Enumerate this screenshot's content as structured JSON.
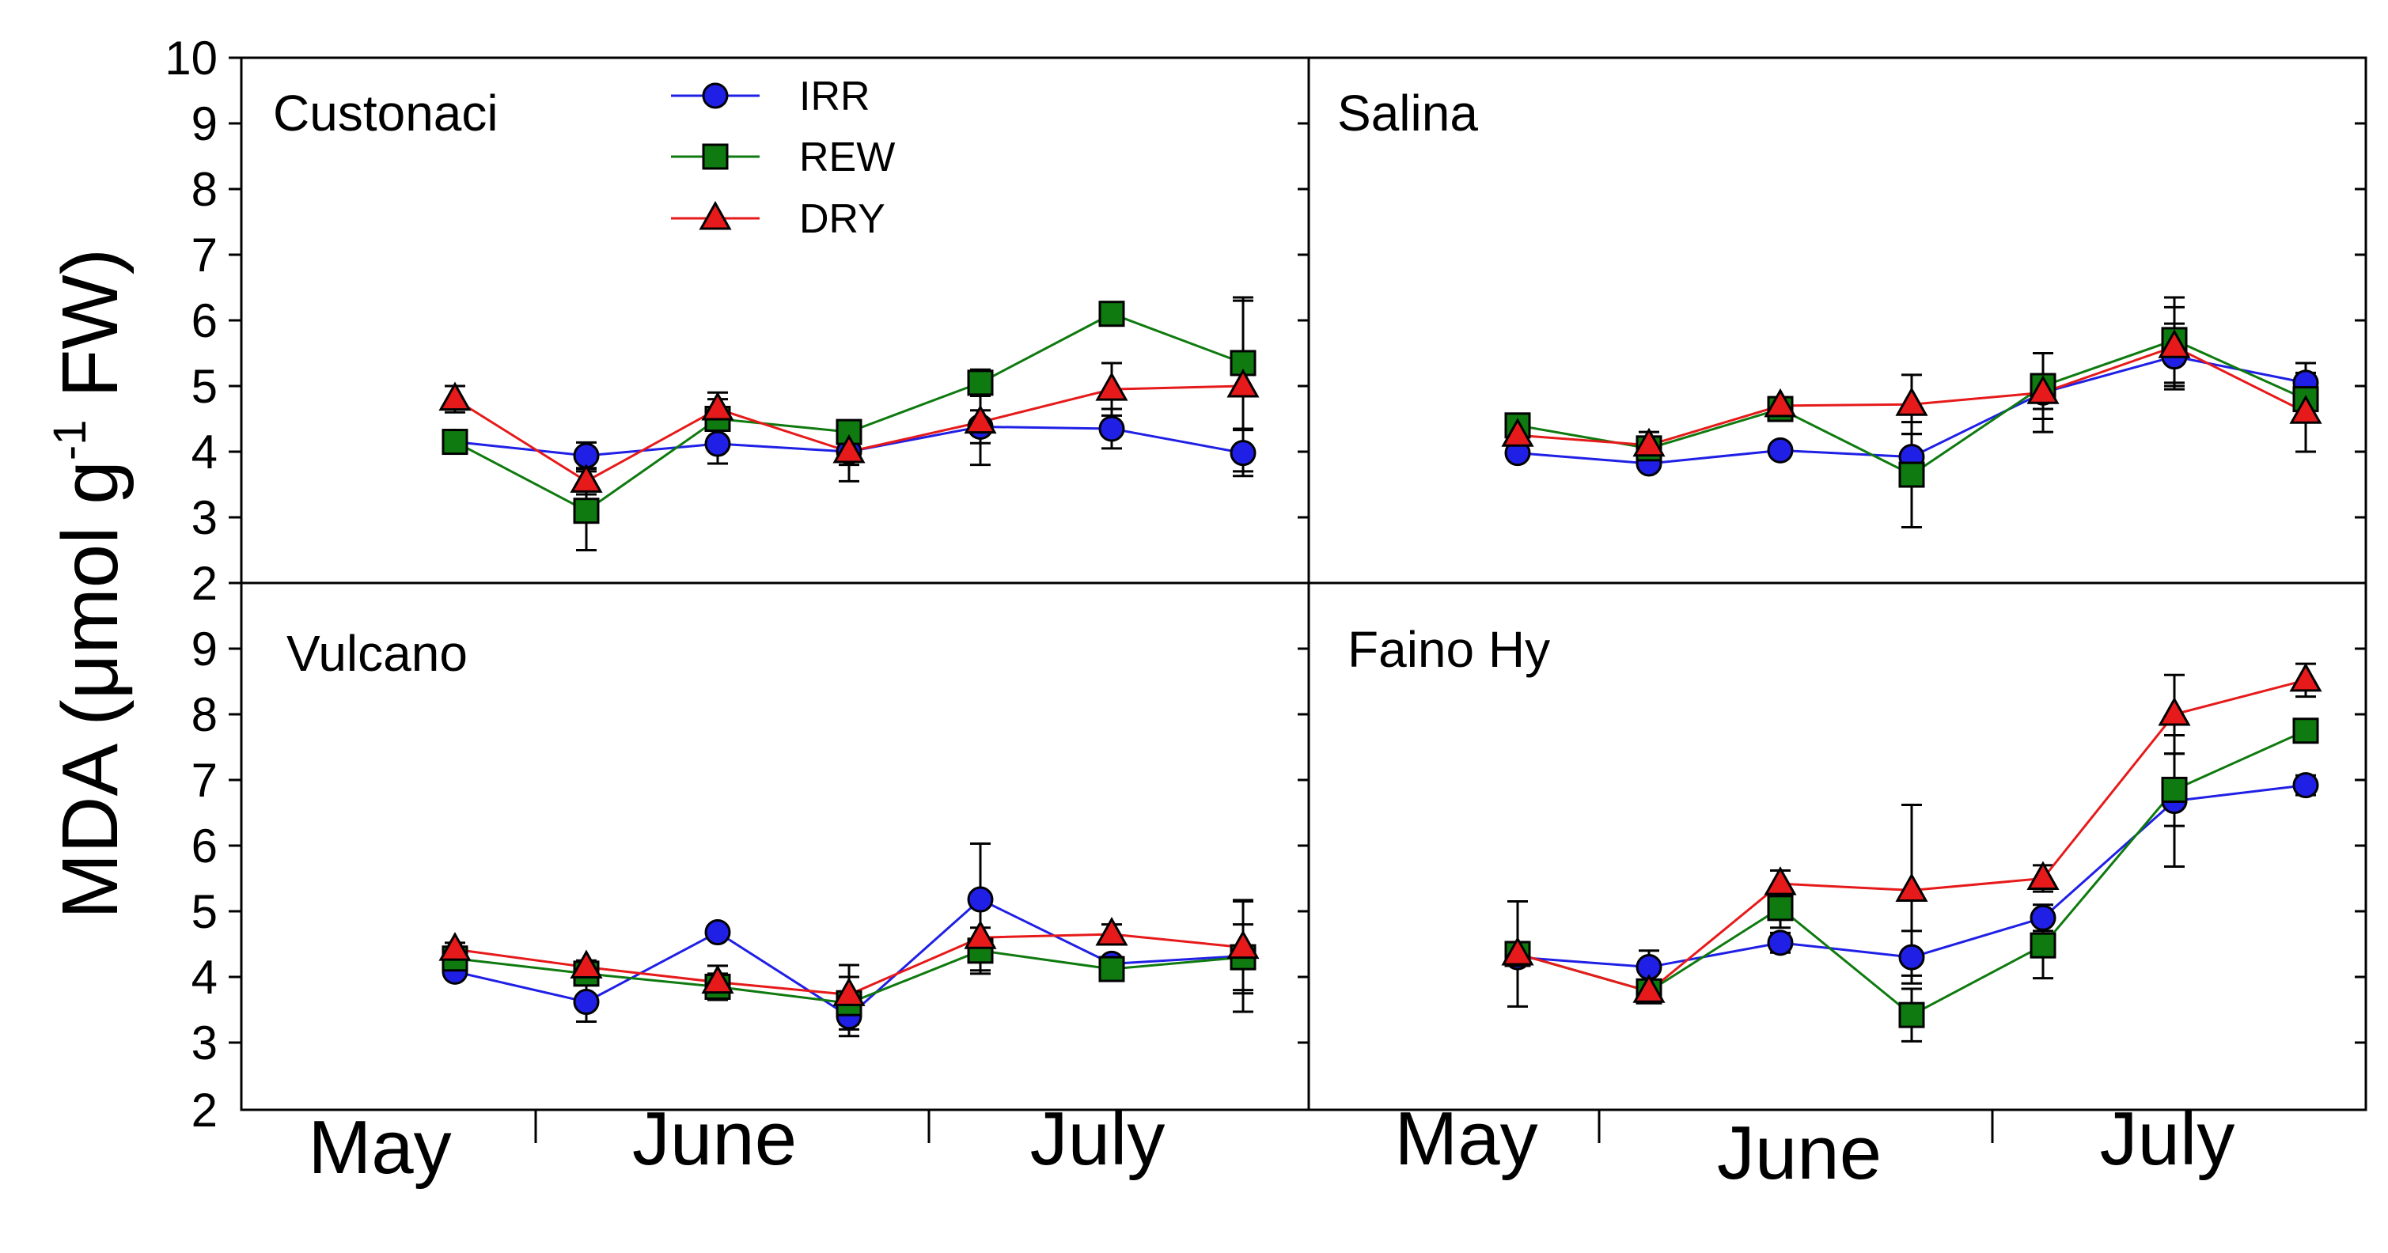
{
  "chart_data": {
    "type": "line",
    "ylabel": "MDA (μmol g-1 FW)",
    "ylabel_parts": {
      "main": "MDA (",
      "mu": "μ",
      "unit": "mol g",
      "sup": "-1",
      "end": " FW)"
    },
    "ylim": [
      2,
      10
    ],
    "yticks_top": [
      "10",
      "9",
      "8",
      "7",
      "6",
      "5",
      "4",
      "3"
    ],
    "yticks_bottom": [
      "2",
      "9",
      "8",
      "7",
      "6",
      "5",
      "4",
      "3"
    ],
    "months": [
      "May",
      "June",
      "July"
    ],
    "x_positions": [
      1,
      2,
      3,
      4,
      5,
      6,
      7
    ],
    "legend": [
      {
        "name": "IRR",
        "color": "#1f1fe6",
        "marker": "circle"
      },
      {
        "name": "REW",
        "color": "#0f7a0f",
        "marker": "square"
      },
      {
        "name": "DRY",
        "color": "#e61a1a",
        "marker": "triangle"
      }
    ],
    "panels": [
      {
        "title": "Custonaci",
        "series": [
          {
            "name": "IRR",
            "values": [
              4.15,
              3.94,
              4.12,
              4.0,
              4.38,
              4.35,
              3.98
            ],
            "errors": [
              0.15,
              0.2,
              0.3,
              0.2,
              0.25,
              0.3,
              0.35
            ]
          },
          {
            "name": "REW",
            "values": [
              4.15,
              3.1,
              4.5,
              4.3,
              5.05,
              6.1,
              5.35
            ],
            "errors": [
              0.15,
              0.6,
              0.3,
              0.15,
              0.2,
              0.1,
              1.0
            ]
          },
          {
            "name": "DRY",
            "values": [
              4.8,
              3.55,
              4.65,
              4.0,
              4.45,
              4.95,
              5.0
            ],
            "errors": [
              0.2,
              0.2,
              0.25,
              0.45,
              0.65,
              0.4,
              1.3
            ]
          }
        ]
      },
      {
        "title": "Salina",
        "series": [
          {
            "name": "IRR",
            "values": [
              3.98,
              3.82,
              4.02,
              3.92,
              4.9,
              5.45,
              5.05
            ],
            "errors": [
              0.1,
              0.1,
              0.1,
              0.35,
              0.25,
              0.5,
              0.3
            ]
          },
          {
            "name": "REW",
            "values": [
              4.4,
              4.05,
              4.65,
              3.65,
              5.0,
              5.7,
              4.8
            ],
            "errors": [
              0.1,
              0.1,
              0.1,
              0.8,
              0.5,
              0.65,
              0.3
            ]
          },
          {
            "name": "DRY",
            "values": [
              4.25,
              4.1,
              4.7,
              4.72,
              4.9,
              5.6,
              4.6
            ],
            "errors": [
              0.1,
              0.2,
              0.1,
              0.45,
              0.6,
              0.6,
              0.6
            ]
          }
        ]
      },
      {
        "title": "Vulcano",
        "series": [
          {
            "name": "IRR",
            "values": [
              4.08,
              3.62,
              4.68,
              3.4,
              5.18,
              4.2,
              4.32
            ],
            "errors": [
              0.1,
              0.3,
              0.1,
              0.3,
              0.85,
              0.1,
              0.85
            ]
          },
          {
            "name": "REW",
            "values": [
              4.28,
              4.05,
              3.85,
              3.6,
              4.4,
              4.12,
              4.3
            ],
            "errors": [
              0.1,
              0.1,
              0.2,
              0.4,
              0.35,
              0.15,
              0.5
            ]
          },
          {
            "name": "DRY",
            "values": [
              4.42,
              4.15,
              3.92,
              3.73,
              4.6,
              4.65,
              4.45
            ],
            "errors": [
              0.1,
              0.1,
              0.25,
              0.45,
              0.5,
              0.15,
              0.7
            ]
          }
        ]
      },
      {
        "title": "Faino Hy",
        "series": [
          {
            "name": "IRR",
            "values": [
              4.3,
              4.15,
              4.52,
              4.3,
              4.9,
              6.68,
              6.92
            ],
            "errors": [
              0.1,
              0.25,
              0.15,
              0.4,
              0.2,
              1.0,
              0.15
            ]
          },
          {
            "name": "REW",
            "values": [
              4.35,
              3.78,
              5.05,
              3.42,
              4.48,
              6.85,
              7.75
            ],
            "errors": [
              0.1,
              0.1,
              0.3,
              0.4,
              0.5,
              0.55,
              0.1
            ]
          },
          {
            "name": "DRY",
            "values": [
              4.35,
              3.78,
              5.42,
              5.32,
              5.5,
              8.0,
              8.52
            ],
            "errors": [
              0.8,
              0.1,
              0.2,
              1.3,
              0.2,
              0.6,
              0.25
            ]
          }
        ]
      }
    ]
  }
}
